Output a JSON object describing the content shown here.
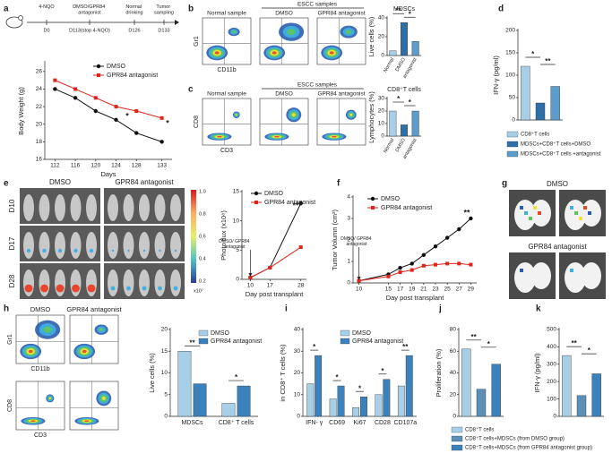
{
  "labels": {
    "panel_letters": [
      "a",
      "b",
      "c",
      "d",
      "e",
      "f",
      "g",
      "h",
      "i",
      "j",
      "k"
    ],
    "timeline": {
      "events": [
        "4-NQO",
        "DMSO/GPR84 antagonist",
        "Normal drinking",
        "Tumor sampling"
      ],
      "days": [
        "D0",
        "D113(stop 4-NQO)",
        "D126",
        "D133"
      ]
    },
    "flow_bc": {
      "group": "ESCC samples",
      "b_headers": [
        "Normal sample",
        "DMSO",
        "GPR84 antagonist"
      ],
      "c_headers": [
        "Normal sample",
        "DMSO",
        "GPR84 antagonist"
      ],
      "b_axes": {
        "y": "Gr1",
        "x": "CD11b"
      },
      "c_axes": {
        "y": "CD8",
        "x": "CD3"
      }
    },
    "imaging_e": {
      "columns": [
        "DMSO",
        "GPR84 antagonist"
      ],
      "rows": [
        "D10",
        "D17",
        "D28"
      ],
      "colorbar_ticks": [
        "1.0",
        "0.8",
        "0.6",
        "0.4",
        "0.2"
      ],
      "colorbar_unit": "x10⁷"
    },
    "imaging_g": {
      "groups": [
        "DMSO",
        "GPR84 antagonist"
      ]
    },
    "flow_h": {
      "columns": [
        "DMSO",
        "GPR84 antagonist"
      ],
      "top_axes": {
        "y": "Gr1",
        "x": "CD11b"
      },
      "bottom_axes": {
        "y": "CD8",
        "x": "CD3"
      }
    }
  },
  "chart_data": [
    {
      "type": "line",
      "x": [
        112,
        116,
        120,
        124,
        128,
        133
      ],
      "xlim": [
        110,
        135
      ],
      "xticks": [
        112,
        116,
        120,
        124,
        128,
        133
      ],
      "ylim": [
        16,
        27
      ],
      "yticks": [
        16,
        18,
        20,
        22,
        24,
        26
      ],
      "xlabel": "Days",
      "ylabel": "Body Weight (g)",
      "series": [
        {
          "name": "DMSO",
          "color": "#111111",
          "marker": "circle",
          "values": [
            24,
            23,
            21.5,
            20.5,
            19,
            18
          ]
        },
        {
          "name": "GPR84 antagonist",
          "color": "#e2231a",
          "marker": "square",
          "values": [
            25,
            24,
            23,
            22,
            21.5,
            20.7
          ]
        }
      ],
      "annotations": [
        "*",
        "*"
      ]
    },
    {
      "type": "bar",
      "title": "MDSCs",
      "categories": [
        "Normal",
        "DMSO",
        "antagonist"
      ],
      "values": [
        5,
        35,
        15
      ],
      "colors": [
        "#a8cfe8",
        "#2e6fa8",
        "#5b9ccc"
      ],
      "ylim": [
        0,
        40
      ],
      "yticks": [
        0,
        20,
        40
      ],
      "ylabel": "Live cells (%)",
      "annotations": [
        "**",
        "*"
      ]
    },
    {
      "type": "bar",
      "title": "CD8⁺T cells",
      "categories": [
        "Normal",
        "DMSO",
        "antagonist"
      ],
      "values": [
        20,
        9,
        20
      ],
      "colors": [
        "#a8cfe8",
        "#2e6fa8",
        "#5b9ccc"
      ],
      "ylim": [
        0,
        30
      ],
      "yticks": [
        0,
        10,
        20,
        30
      ],
      "ylabel": "Lymphocytes (%)",
      "annotations": [
        "*",
        "*"
      ]
    },
    {
      "type": "bar",
      "categories": [
        "CD8⁺T cells",
        "MDSCs+CD8⁺T cells+DMSO",
        "MDSCs+CD8⁺T cells +antagonist"
      ],
      "values": [
        120,
        38,
        75
      ],
      "colors": [
        "#a8cfe8",
        "#2e6fa8",
        "#5b9ccc"
      ],
      "ylim": [
        0,
        200
      ],
      "yticks": [
        0,
        50,
        100,
        150,
        200
      ],
      "ylabel": "IFN-γ (pg/ml)",
      "annotations": [
        "*",
        "**"
      ]
    },
    {
      "type": "line",
      "x": [
        10,
        17,
        28
      ],
      "xlim": [
        7,
        30
      ],
      "xticks": [
        10,
        17,
        28
      ],
      "ylim": [
        0,
        15
      ],
      "yticks": [
        0,
        5,
        10,
        15
      ],
      "xlabel": "Day post transplant",
      "ylabel": "Photo flux (x10⁸)",
      "series": [
        {
          "name": "DMSO",
          "color": "#111111",
          "marker": "circle",
          "values": [
            0.3,
            2,
            13
          ]
        },
        {
          "name": "GPR84 antagonist",
          "color": "#e2231a",
          "marker": "square",
          "values": [
            0.3,
            2,
            5.5
          ]
        }
      ],
      "annotations": [
        "**",
        "DMSO/ GPR84 antagonist"
      ]
    },
    {
      "type": "line",
      "x": [
        10,
        15,
        17,
        19,
        21,
        23,
        25,
        27,
        29
      ],
      "xlim": [
        9,
        30
      ],
      "xticks": [
        10,
        15,
        17,
        19,
        21,
        23,
        25,
        27,
        29
      ],
      "ylim": [
        0,
        4
      ],
      "yticks": [
        0,
        1,
        2,
        3,
        4
      ],
      "xlabel": "Day post transplant",
      "ylabel": "Tumor Volumn (cm³)",
      "series": [
        {
          "name": "DMSO",
          "color": "#111111",
          "marker": "circle",
          "values": [
            0.1,
            0.4,
            0.7,
            0.9,
            1.3,
            1.7,
            2.1,
            2.5,
            3.0
          ]
        },
        {
          "name": "GPR84 antagonist",
          "color": "#e2231a",
          "marker": "square",
          "values": [
            0.1,
            0.3,
            0.5,
            0.6,
            0.8,
            0.85,
            0.9,
            0.9,
            0.85
          ]
        }
      ],
      "annotations": [
        "**",
        "DMSO/ GPR84 antagonist"
      ]
    },
    {
      "type": "bar",
      "categories": [
        "MDSCs",
        "CD8⁺ T cells"
      ],
      "series": [
        {
          "name": "DMSO",
          "color": "#a8cfe8",
          "values": [
            15,
            3
          ]
        },
        {
          "name": "GPR84 antagonist",
          "color": "#3b82bd",
          "values": [
            7.5,
            7
          ]
        }
      ],
      "ylim": [
        0,
        20
      ],
      "yticks": [
        0,
        5,
        10,
        15,
        20
      ],
      "ylabel": "Live cells (%)",
      "annotations": [
        "**",
        "*"
      ]
    },
    {
      "type": "bar",
      "categories": [
        "IFN- γ",
        "CD69",
        "Ki67",
        "CD28",
        "CD107a"
      ],
      "series": [
        {
          "name": "DMSO",
          "color": "#a8cfe8",
          "values": [
            15,
            8,
            4,
            10,
            14
          ]
        },
        {
          "name": "GPR84 antagonist",
          "color": "#3b82bd",
          "values": [
            28,
            14,
            9,
            17,
            28
          ]
        }
      ],
      "ylim": [
        0,
        40
      ],
      "yticks": [
        0,
        10,
        20,
        30,
        40
      ],
      "ylabel": "in CD8⁺ T cells (%)",
      "annotations": [
        "*",
        "*",
        "*",
        "*",
        "**"
      ]
    },
    {
      "type": "bar",
      "categories": [
        "CD8⁺T cells",
        "CD8⁺T cells+MDSCs (from DMSO group)",
        "CD8⁺T cells+MDSCs (from GPR84 antagonist group)"
      ],
      "values": [
        62,
        25,
        48
      ],
      "colors": [
        "#a8cfe8",
        "#5b8fb8",
        "#3b82bd"
      ],
      "ylim": [
        0,
        80
      ],
      "yticks": [
        0,
        20,
        40,
        60,
        80
      ],
      "ylabel": "Proliferation (%)",
      "annotations": [
        "**",
        "*"
      ]
    },
    {
      "type": "bar",
      "categories": [
        null,
        null,
        null
      ],
      "values": [
        350,
        120,
        245
      ],
      "colors": [
        "#a8cfe8",
        "#5b8fb8",
        "#3b82bd"
      ],
      "ylim": [
        0,
        500
      ],
      "yticks": [
        0,
        100,
        200,
        300,
        400,
        500
      ],
      "ylabel": "IFN-γ (pg/ml)",
      "annotations": [
        "**",
        "*"
      ]
    }
  ]
}
